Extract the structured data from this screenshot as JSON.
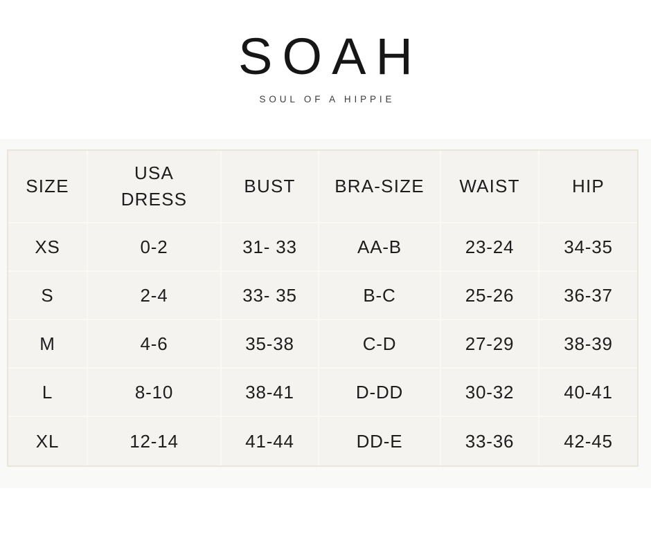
{
  "brand": {
    "name": "SOAH",
    "tagline": "SOUL OF A HIPPIE"
  },
  "chart_data": {
    "type": "table",
    "columns": [
      "SIZE",
      "USA\nDRESS",
      "BUST",
      "BRA-SIZE",
      "WAIST",
      "HIP"
    ],
    "rows": [
      [
        "XS",
        "0-2",
        "31- 33",
        "AA-B",
        "23-24",
        "34-35"
      ],
      [
        "S",
        "2-4",
        "33- 35",
        "B-C",
        "25-26",
        "36-37"
      ],
      [
        "M",
        "4-6",
        "35-38",
        "C-D",
        "27-29",
        "38-39"
      ],
      [
        "L",
        "8-10",
        "38-41",
        "D-DD",
        "30-32",
        "40-41"
      ],
      [
        "XL",
        "12-14",
        "41-44",
        "DD-E",
        "33-36",
        "42-45"
      ]
    ]
  },
  "colors": {
    "text": "#1d1d1d",
    "brand_text": "#161616",
    "tagline_text": "#3c3c3c",
    "section_bg": "#f9f9f7",
    "cell_bg": "#f4f3f0",
    "inner_border": "#faf9f4",
    "outer_border": "#e8e5da",
    "page_bg": "#ffffff"
  }
}
